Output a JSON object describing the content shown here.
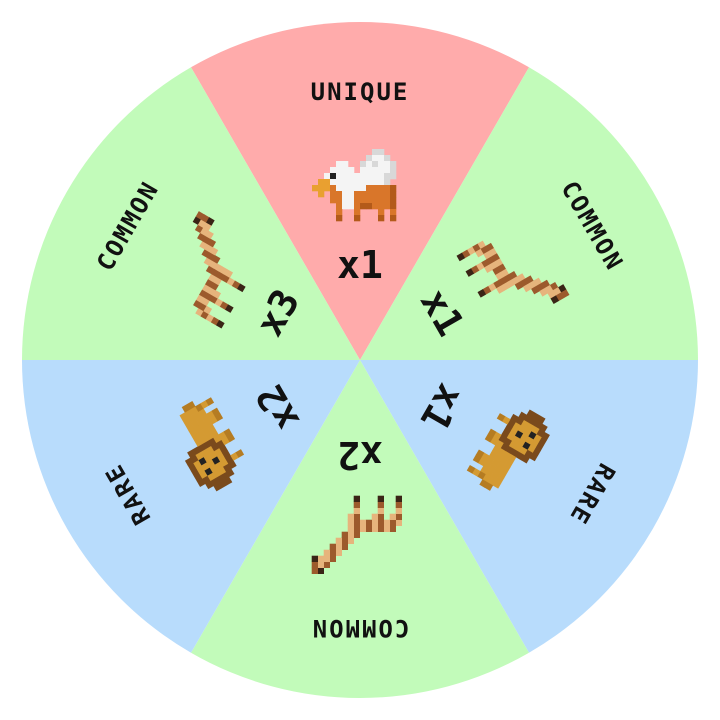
{
  "wheel": {
    "colors": {
      "common": "#c2fbba",
      "unique": "#ffabab",
      "rare": "#b8dcfc"
    },
    "segments": [
      {
        "rarity": "unique",
        "label": "UNIQUE",
        "count": "x1",
        "icon": "griffin-icon"
      },
      {
        "rarity": "common",
        "label": "COMMON",
        "count": "x1",
        "icon": "giraffe-icon"
      },
      {
        "rarity": "rare",
        "label": "RARE",
        "count": "x1",
        "icon": "lion-icon"
      },
      {
        "rarity": "common",
        "label": "COMMON",
        "count": "x2",
        "icon": "giraffe-icon"
      },
      {
        "rarity": "rare",
        "label": "RARE",
        "count": "x2",
        "icon": "lion-icon"
      },
      {
        "rarity": "common",
        "label": "COMMON",
        "count": "x3",
        "icon": "giraffe-icon"
      }
    ]
  }
}
